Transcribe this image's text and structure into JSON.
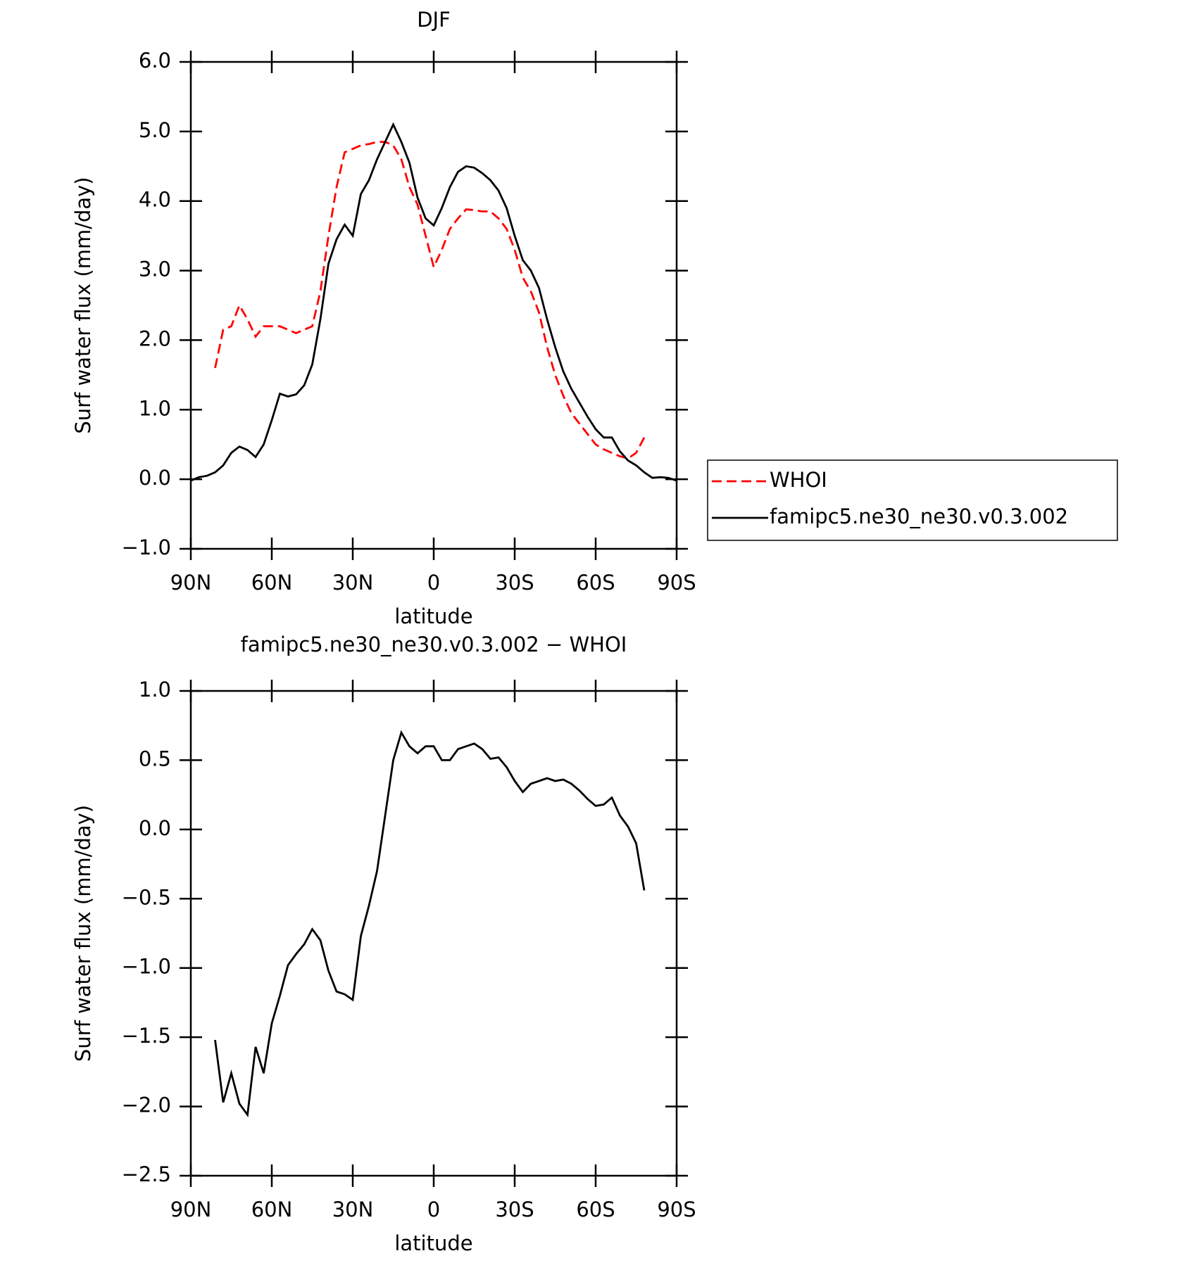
{
  "chart_data": [
    {
      "type": "line",
      "title": "DJF",
      "xlabel": "latitude",
      "ylabel": "Surf water flux (mm/day)",
      "x": [
        90,
        87,
        84,
        81,
        78,
        75,
        72,
        69,
        66,
        63,
        60,
        57,
        54,
        51,
        48,
        45,
        42,
        39,
        36,
        33,
        30,
        27,
        24,
        21,
        18,
        15,
        12,
        9,
        6,
        3,
        0,
        -3,
        -6,
        -9,
        -12,
        -15,
        -18,
        -21,
        -24,
        -27,
        -30,
        -33,
        -36,
        -39,
        -42,
        -45,
        -48,
        -51,
        -54,
        -57,
        -60,
        -63,
        -66,
        -69,
        -72,
        -75,
        -78,
        -81,
        -84,
        -87,
        -90
      ],
      "series": [
        {
          "name": "WHOI",
          "color": "#ff0000",
          "line_style": "dashed",
          "values": [
            null,
            null,
            null,
            1.6,
            2.15,
            2.2,
            2.5,
            2.3,
            2.05,
            2.2,
            2.2,
            2.2,
            2.15,
            2.1,
            2.15,
            2.2,
            2.7,
            3.5,
            4.2,
            4.7,
            4.75,
            4.8,
            4.82,
            4.85,
            4.85,
            4.8,
            4.6,
            4.2,
            3.95,
            3.5,
            3.05,
            3.3,
            3.6,
            3.75,
            3.88,
            3.87,
            3.85,
            3.85,
            3.75,
            3.6,
            3.3,
            2.9,
            2.7,
            2.4,
            1.9,
            1.5,
            1.2,
            0.95,
            0.8,
            0.65,
            0.5,
            0.43,
            0.38,
            0.33,
            0.3,
            0.38,
            0.6,
            null,
            null,
            null,
            null
          ]
        },
        {
          "name": "famipc5.ne30_ne30.v0.3.002",
          "color": "#000000",
          "line_style": "solid",
          "values": [
            -0.02,
            0.03,
            0.05,
            0.1,
            0.2,
            0.38,
            0.47,
            0.42,
            0.32,
            0.5,
            0.85,
            1.23,
            1.19,
            1.22,
            1.35,
            1.65,
            2.3,
            3.1,
            3.45,
            3.66,
            3.5,
            4.1,
            4.3,
            4.6,
            4.85,
            5.1,
            4.85,
            4.55,
            4.05,
            3.75,
            3.65,
            3.9,
            4.2,
            4.42,
            4.5,
            4.48,
            4.4,
            4.3,
            4.15,
            3.9,
            3.5,
            3.15,
            3.0,
            2.75,
            2.3,
            1.9,
            1.55,
            1.3,
            1.1,
            0.9,
            0.72,
            0.6,
            0.6,
            0.4,
            0.27,
            0.2,
            0.1,
            0.02,
            0.03,
            0.02,
            -0.02
          ]
        }
      ],
      "xlim": [
        90,
        -90
      ],
      "xticks": [
        {
          "value": 90,
          "label": "90N"
        },
        {
          "value": 60,
          "label": "60N"
        },
        {
          "value": 30,
          "label": "30N"
        },
        0,
        {
          "value": -30,
          "label": "30S"
        },
        {
          "value": -60,
          "label": "60S"
        },
        {
          "value": -90,
          "label": "90S"
        }
      ],
      "ylim": [
        -1,
        6
      ],
      "yticks": [
        {
          "value": -1,
          "label": "−1.0"
        },
        {
          "value": 0,
          "label": "0.0"
        },
        {
          "value": 1,
          "label": "1.0"
        },
        {
          "value": 2,
          "label": "2.0"
        },
        {
          "value": 3,
          "label": "3.0"
        },
        {
          "value": 4,
          "label": "4.0"
        },
        {
          "value": 5,
          "label": "5.0"
        },
        {
          "value": 6,
          "label": "6.0"
        }
      ],
      "legend": "right"
    },
    {
      "type": "line",
      "title": "famipc5.ne30_ne30.v0.3.002 − WHOI",
      "xlabel": "latitude",
      "ylabel": "Surf water flux (mm/day)",
      "x": [
        90,
        87,
        84,
        81,
        78,
        75,
        72,
        69,
        66,
        63,
        60,
        57,
        54,
        51,
        48,
        45,
        42,
        39,
        36,
        33,
        30,
        27,
        24,
        21,
        18,
        15,
        12,
        9,
        6,
        3,
        0,
        -3,
        -6,
        -9,
        -12,
        -15,
        -18,
        -21,
        -24,
        -27,
        -30,
        -33,
        -36,
        -39,
        -42,
        -45,
        -48,
        -51,
        -54,
        -57,
        -60,
        -63,
        -66,
        -69,
        -72,
        -75,
        -78,
        -81,
        -84,
        -87,
        -90
      ],
      "series": [
        {
          "color": "#000000",
          "line_style": "solid",
          "values": [
            null,
            null,
            null,
            -1.52,
            -1.97,
            -1.76,
            -1.98,
            -2.06,
            -1.57,
            -1.76,
            -1.4,
            -1.2,
            -0.98,
            -0.9,
            -0.83,
            -0.72,
            -0.8,
            -1.02,
            -1.17,
            -1.19,
            -1.23,
            -0.77,
            -0.55,
            -0.3,
            0.1,
            0.5,
            0.7,
            0.6,
            0.55,
            0.6,
            0.6,
            0.5,
            0.5,
            0.58,
            0.6,
            0.62,
            0.58,
            0.51,
            0.52,
            0.45,
            0.35,
            0.27,
            0.33,
            0.35,
            0.37,
            0.35,
            0.36,
            0.33,
            0.28,
            0.22,
            0.17,
            0.18,
            0.23,
            0.1,
            0.02,
            -0.1,
            -0.44,
            null,
            null,
            null,
            null
          ]
        }
      ],
      "xlim": [
        90,
        -90
      ],
      "xticks": [
        {
          "value": 90,
          "label": "90N"
        },
        {
          "value": 60,
          "label": "60N"
        },
        {
          "value": 30,
          "label": "30N"
        },
        0,
        {
          "value": -30,
          "label": "30S"
        },
        {
          "value": -60,
          "label": "60S"
        },
        {
          "value": -90,
          "label": "90S"
        }
      ],
      "ylim": [
        -2.5,
        1
      ],
      "yticks": [
        {
          "value": -2.5,
          "label": "−2.5"
        },
        {
          "value": -2,
          "label": "−2.0"
        },
        {
          "value": -1.5,
          "label": "−1.5"
        },
        {
          "value": -1,
          "label": "−1.0"
        },
        {
          "value": -0.5,
          "label": "−0.5"
        },
        {
          "value": 0,
          "label": "0.0"
        },
        {
          "value": 0.5,
          "label": "0.5"
        },
        {
          "value": 1,
          "label": "1.0"
        }
      ]
    }
  ]
}
